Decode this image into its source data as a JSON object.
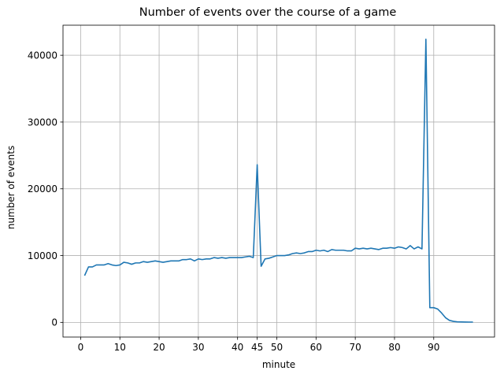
{
  "chart_data": {
    "type": "line",
    "title": "Number of events over the course of a game",
    "xlabel": "minute",
    "ylabel": "number of events",
    "xlim": [
      -4.5,
      105.5
    ],
    "ylim": [
      -2200,
      44500
    ],
    "grid": true,
    "x_ticks": [
      0,
      10,
      20,
      30,
      40,
      45,
      50,
      60,
      70,
      80,
      90
    ],
    "x_tick_labels": [
      "0",
      "10",
      "20",
      "30",
      "40",
      "45",
      "50",
      "60",
      "70",
      "80",
      "90"
    ],
    "y_ticks": [
      0,
      10000,
      20000,
      30000,
      40000
    ],
    "y_tick_labels": [
      "0",
      "10000",
      "20000",
      "30000",
      "40000"
    ],
    "series": [
      {
        "color": "#1f77b4",
        "x": [
          1,
          2,
          3,
          4,
          5,
          6,
          7,
          8,
          9,
          10,
          11,
          12,
          13,
          14,
          15,
          16,
          17,
          18,
          19,
          20,
          21,
          22,
          23,
          24,
          25,
          26,
          27,
          28,
          29,
          30,
          31,
          32,
          33,
          34,
          35,
          36,
          37,
          38,
          39,
          40,
          41,
          42,
          43,
          44,
          45,
          46,
          47,
          48,
          49,
          50,
          51,
          52,
          53,
          54,
          55,
          56,
          57,
          58,
          59,
          60,
          61,
          62,
          63,
          64,
          65,
          66,
          67,
          68,
          69,
          70,
          71,
          72,
          73,
          74,
          75,
          76,
          77,
          78,
          79,
          80,
          81,
          82,
          83,
          84,
          85,
          86,
          87,
          88,
          89,
          90,
          91,
          92,
          93,
          94,
          95,
          96,
          97,
          98,
          99,
          100
        ],
        "values": [
          7000,
          8300,
          8300,
          8600,
          8600,
          8600,
          8800,
          8600,
          8500,
          8600,
          9000,
          8900,
          8700,
          8900,
          8900,
          9100,
          9000,
          9100,
          9200,
          9100,
          9000,
          9100,
          9200,
          9200,
          9200,
          9400,
          9400,
          9500,
          9200,
          9500,
          9400,
          9500,
          9500,
          9700,
          9600,
          9700,
          9600,
          9700,
          9700,
          9700,
          9700,
          9800,
          9900,
          9700,
          23600,
          8400,
          9500,
          9600,
          9800,
          10000,
          10000,
          10000,
          10100,
          10300,
          10400,
          10300,
          10400,
          10600,
          10600,
          10800,
          10700,
          10800,
          10600,
          10900,
          10800,
          10800,
          10800,
          10700,
          10700,
          11100,
          11000,
          11100,
          11000,
          11100,
          11000,
          10900,
          11100,
          11100,
          11200,
          11100,
          11300,
          11200,
          11000,
          11500,
          11000,
          11300,
          11000,
          42400,
          2200,
          2200,
          2000,
          1400,
          700,
          300,
          150,
          80,
          60,
          50,
          40,
          40
        ]
      }
    ]
  }
}
